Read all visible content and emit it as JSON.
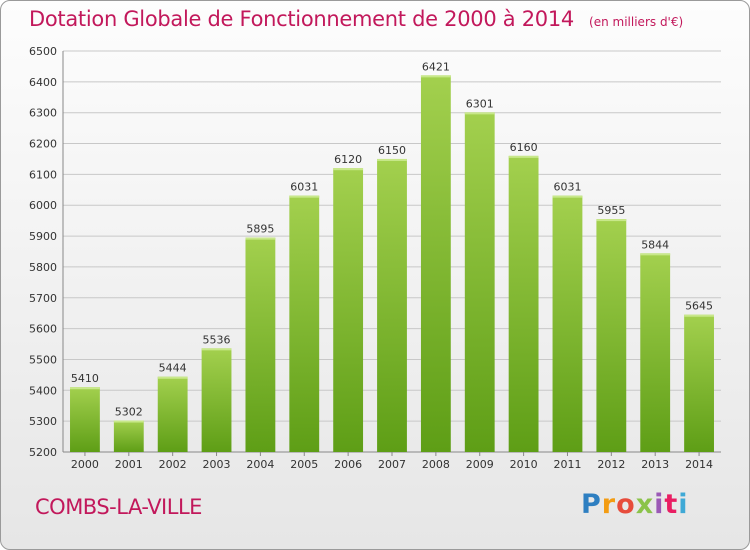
{
  "header": {
    "title": "Dotation Globale de Fonctionnement de 2000 à 2014",
    "unit": "(en milliers d'€)"
  },
  "footer": {
    "commune": "COMBS-LA-VILLE",
    "logo": "Proxiti"
  },
  "colors": {
    "title": "#c2185b",
    "bar_top": "#a3d04e",
    "bar_bottom": "#5e9e16",
    "grid": "#c8c8c8"
  },
  "chart_data": {
    "type": "bar",
    "title": "Dotation Globale de Fonctionnement de 2000 à 2014",
    "xlabel": "",
    "ylabel": "",
    "categories": [
      "2000",
      "2001",
      "2002",
      "2003",
      "2004",
      "2005",
      "2006",
      "2007",
      "2008",
      "2009",
      "2010",
      "2011",
      "2012",
      "2013",
      "2014"
    ],
    "values": [
      5410,
      5302,
      5444,
      5536,
      5895,
      6031,
      6120,
      6150,
      6421,
      6301,
      6160,
      6031,
      5955,
      5844,
      5645
    ],
    "ylim": [
      5200,
      6500
    ],
    "yticks": [
      5200,
      5300,
      5400,
      5500,
      5600,
      5700,
      5800,
      5900,
      6000,
      6100,
      6200,
      6300,
      6400,
      6500
    ],
    "grid": true,
    "data_labels": true
  }
}
